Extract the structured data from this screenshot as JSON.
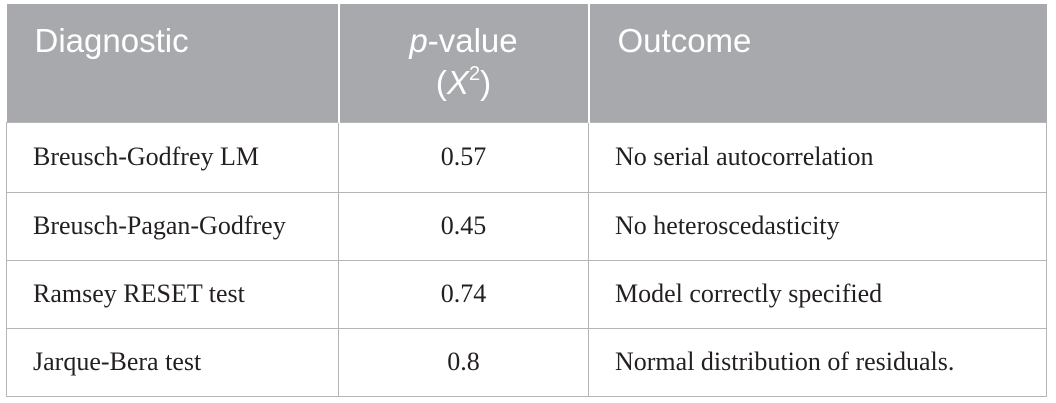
{
  "table": {
    "headers": {
      "diagnostic": "Diagnostic",
      "pvalue_italic": "p",
      "pvalue_rest": "-value",
      "pvalue_paren_open": "(",
      "pvalue_x": "X",
      "pvalue_sup": "2",
      "pvalue_paren_close": ")",
      "outcome": "Outcome"
    },
    "rows": [
      {
        "diagnostic": "Breusch-Godfrey LM",
        "pvalue": "0.57",
        "outcome": "No serial autocorrelation"
      },
      {
        "diagnostic": "Breusch-Pagan-Godfrey",
        "pvalue": "0.45",
        "outcome": "No heteroscedasticity"
      },
      {
        "diagnostic": "Ramsey RESET test",
        "pvalue": "0.74",
        "outcome": "Model correctly specified"
      },
      {
        "diagnostic": "Jarque-Bera test",
        "pvalue": "0.8",
        "outcome": "Normal distribution of residuals."
      }
    ]
  },
  "colors": {
    "header_bg": "#a7a9ac",
    "header_text": "#ffffff",
    "body_text": "#231f20",
    "grid": "#b5b5b5"
  }
}
